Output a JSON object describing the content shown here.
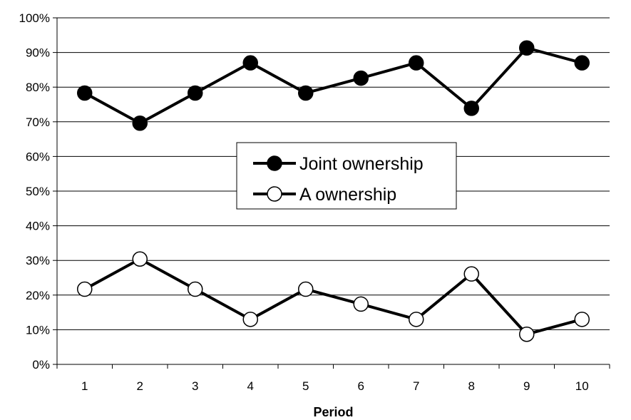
{
  "chart_data": {
    "type": "line",
    "x": [
      1,
      2,
      3,
      4,
      5,
      6,
      7,
      8,
      9,
      10
    ],
    "xlabel": "Period",
    "ylabel": "",
    "ylim": [
      0,
      100
    ],
    "y_ticks": [
      "0%",
      "10%",
      "20%",
      "30%",
      "40%",
      "50%",
      "60%",
      "70%",
      "80%",
      "90%",
      "100%"
    ],
    "grid": "horizontal",
    "legend": "center",
    "series": [
      {
        "name": "Joint ownership",
        "marker": "filled-circle",
        "color": "#000000",
        "values": [
          78.3,
          69.6,
          78.3,
          87.0,
          78.3,
          82.6,
          87.0,
          73.9,
          91.3,
          87.0
        ]
      },
      {
        "name": "A ownership",
        "marker": "open-circle",
        "color": "#000000",
        "values": [
          21.7,
          30.4,
          21.7,
          13.0,
          21.7,
          17.4,
          13.0,
          26.1,
          8.7,
          13.0
        ]
      }
    ]
  }
}
